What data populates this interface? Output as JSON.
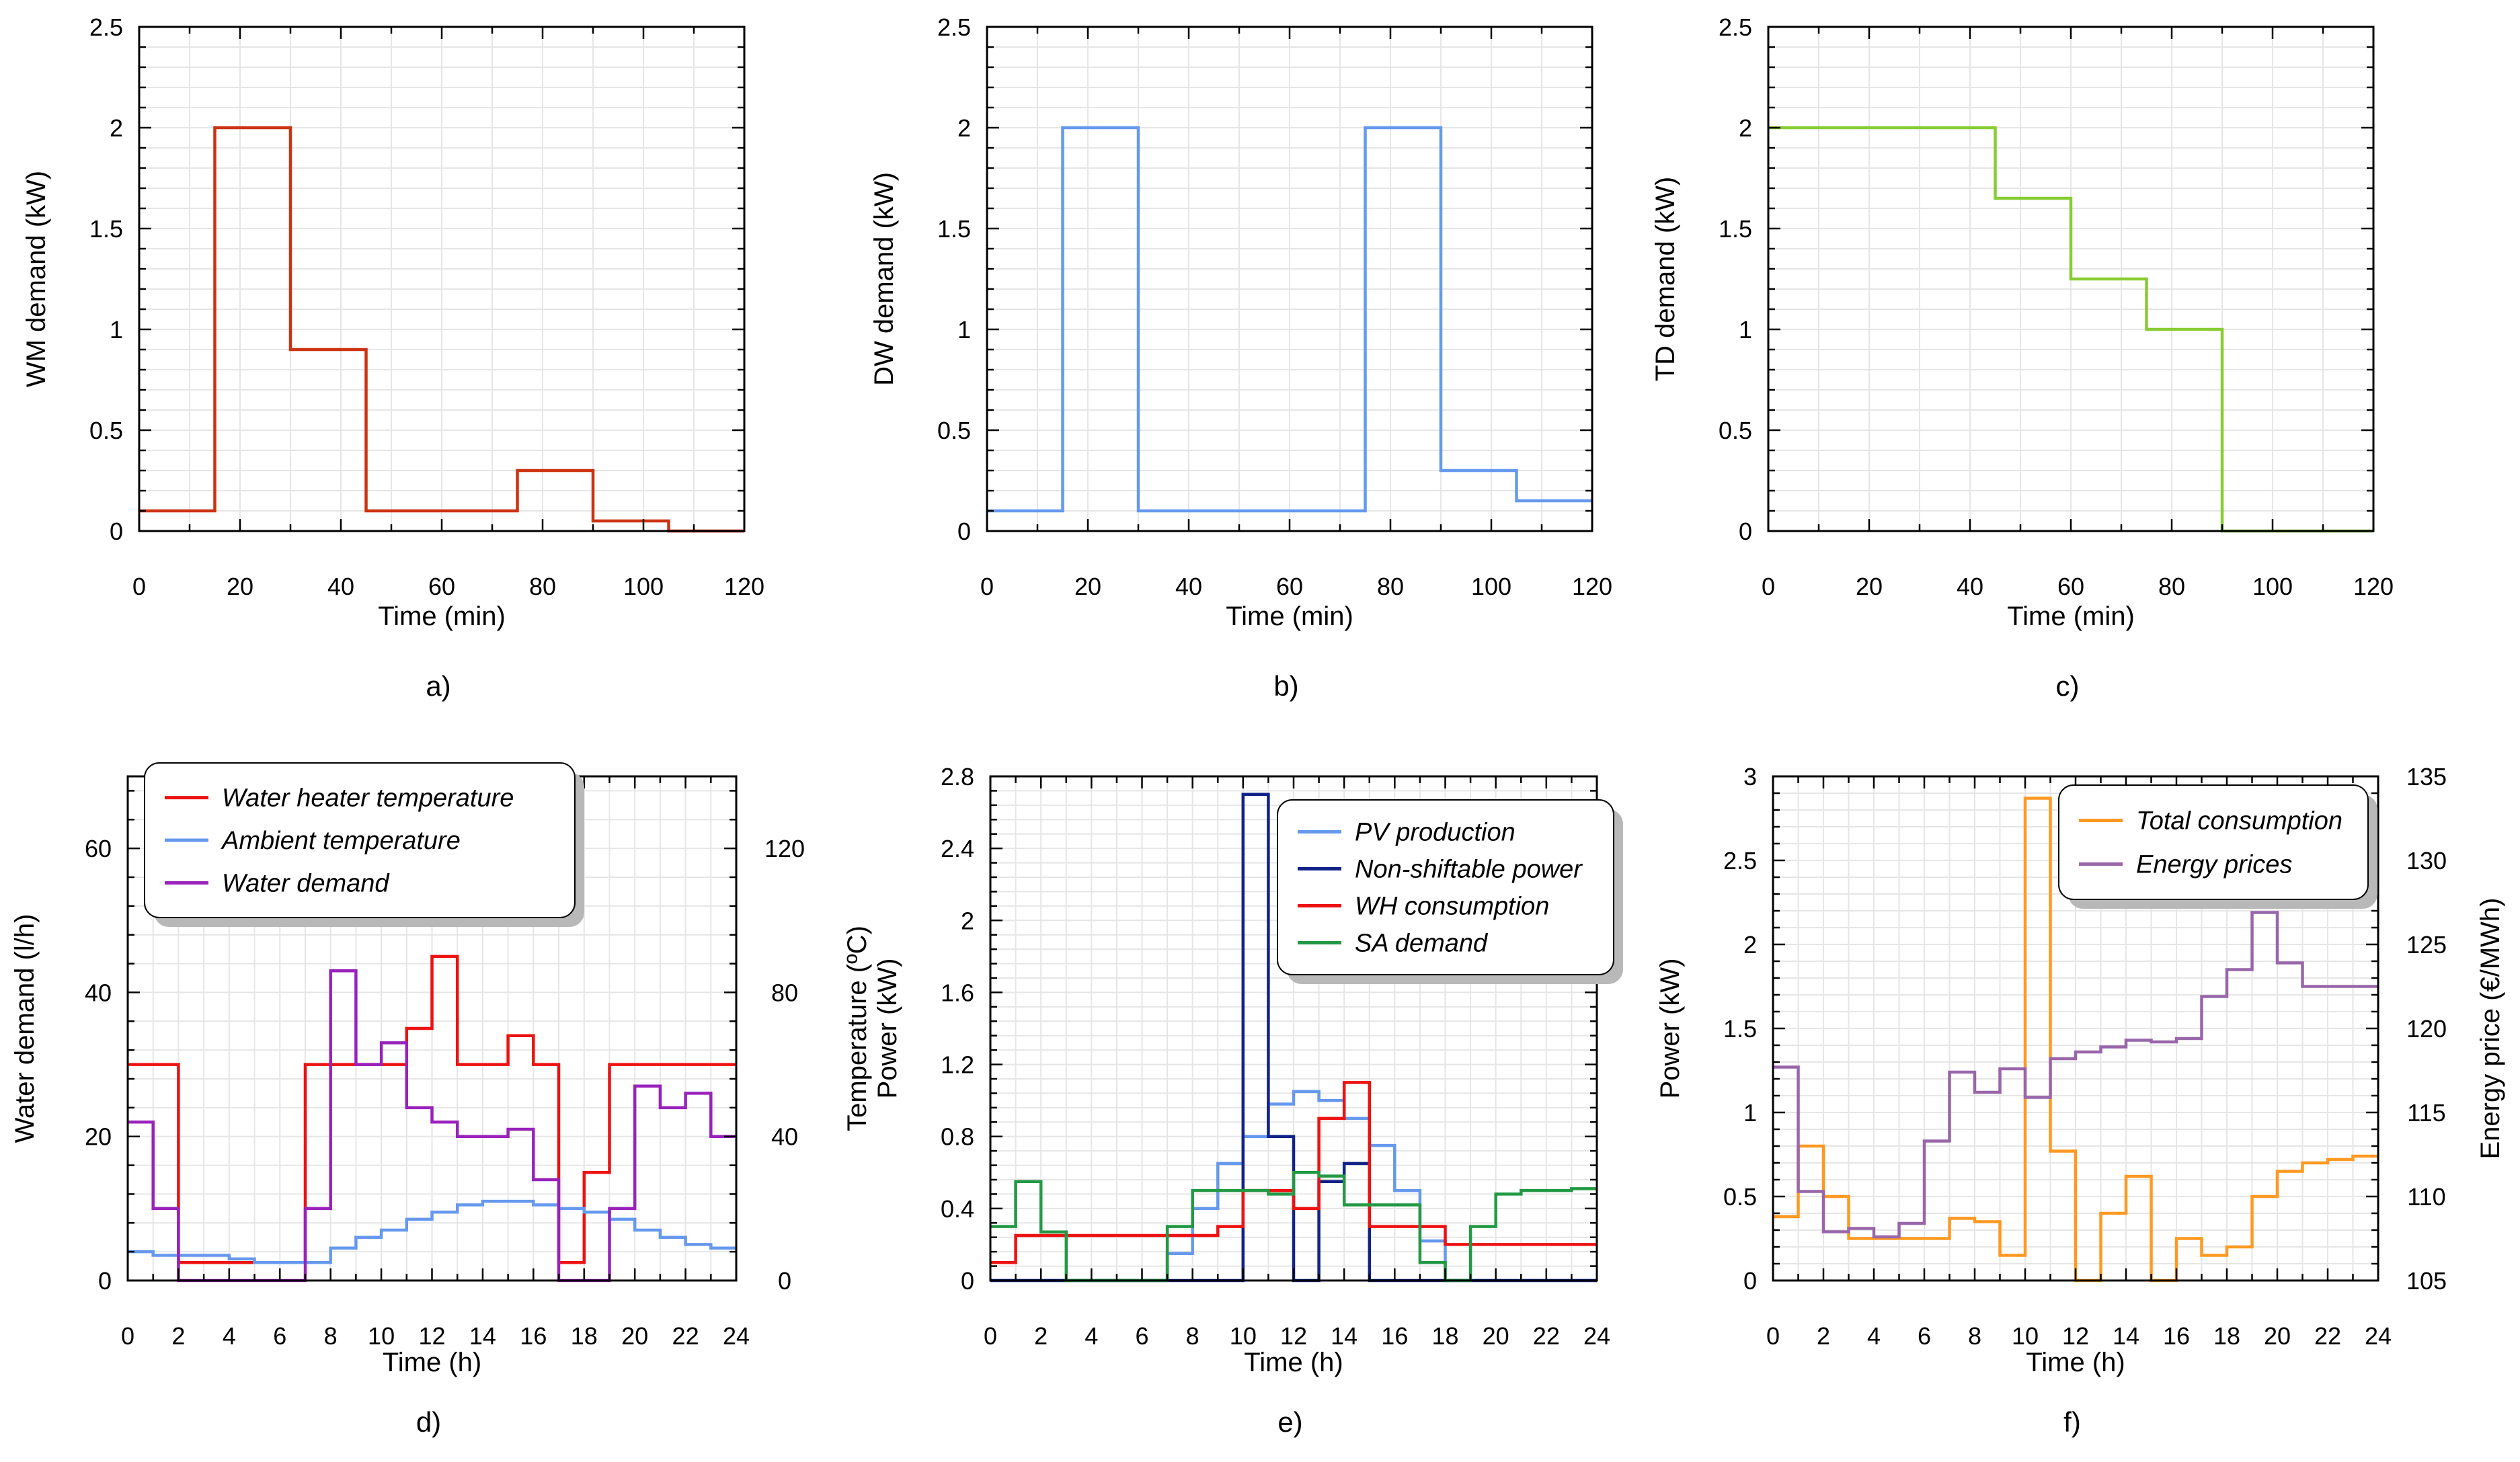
{
  "chart_data": [
    {
      "id": "a",
      "type": "line",
      "step": true,
      "caption": "a)",
      "xlabel": "Time (min)",
      "ylabel": "WM demand (kW)",
      "xlim": [
        0,
        120
      ],
      "ylim": [
        0,
        2.5
      ],
      "xticks": [
        0,
        20,
        40,
        60,
        80,
        100,
        120
      ],
      "yticks": [
        0,
        0.5,
        1,
        1.5,
        2,
        2.5
      ],
      "ytick_labels": [
        "0",
        "0.5",
        "1",
        "1.5",
        "2",
        "2.5"
      ],
      "grid": true,
      "series": [
        {
          "name": "WM demand",
          "color": "#cc3311",
          "edges": [
            0,
            15,
            30,
            45,
            60,
            75,
            90,
            105,
            120
          ],
          "values": [
            0.1,
            2.0,
            0.9,
            0.1,
            0.1,
            0.3,
            0.05,
            0
          ]
        }
      ]
    },
    {
      "id": "b",
      "type": "line",
      "step": true,
      "caption": "b)",
      "xlabel": "Time (min)",
      "ylabel": "DW demand (kW)",
      "xlim": [
        0,
        120
      ],
      "ylim": [
        0,
        2.5
      ],
      "xticks": [
        0,
        20,
        40,
        60,
        80,
        100,
        120
      ],
      "yticks": [
        0,
        0.5,
        1,
        1.5,
        2,
        2.5
      ],
      "ytick_labels": [
        "0",
        "0.5",
        "1",
        "1.5",
        "2",
        "2.5"
      ],
      "grid": true,
      "series": [
        {
          "name": "DW demand",
          "color": "#6699ee",
          "edges": [
            0,
            15,
            30,
            45,
            60,
            75,
            90,
            105,
            120
          ],
          "values": [
            0.1,
            2.0,
            0.1,
            0.1,
            0.1,
            2.0,
            0.3,
            0.15
          ]
        }
      ]
    },
    {
      "id": "c",
      "type": "line",
      "step": true,
      "caption": "c)",
      "xlabel": "Time (min)",
      "ylabel": "TD demand (kW)",
      "xlim": [
        0,
        120
      ],
      "ylim": [
        0,
        2.5
      ],
      "xticks": [
        0,
        20,
        40,
        60,
        80,
        100,
        120
      ],
      "yticks": [
        0,
        0.5,
        1,
        1.5,
        2,
        2.5
      ],
      "ytick_labels": [
        "0",
        "0.5",
        "1",
        "1.5",
        "2",
        "2.5"
      ],
      "grid": true,
      "series": [
        {
          "name": "TD demand",
          "color": "#88cc33",
          "edges": [
            0,
            15,
            30,
            45,
            60,
            75,
            90,
            105,
            120
          ],
          "values": [
            2.0,
            2.0,
            2.0,
            1.65,
            1.25,
            1.0,
            0,
            0
          ]
        }
      ]
    },
    {
      "id": "d",
      "type": "line",
      "step": true,
      "caption": "d)",
      "xlabel": "Time (h)",
      "ylabel": "Water demand (l/h)",
      "ylabel_right": "Temperature (ºC)",
      "xlim": [
        0,
        24
      ],
      "ylim": [
        0,
        70
      ],
      "ylim_right": [
        0,
        140
      ],
      "xticks": [
        0,
        2,
        4,
        6,
        8,
        10,
        12,
        14,
        16,
        18,
        20,
        22,
        24
      ],
      "yticks": [
        0,
        20,
        40,
        60
      ],
      "ytick_labels": [
        "0",
        "20",
        "40",
        "60"
      ],
      "yticks_right": [
        0,
        40,
        80,
        120
      ],
      "ytick_labels_right": [
        "0",
        "40",
        "80",
        "120"
      ],
      "grid": true,
      "legend_position": "top-left",
      "series": [
        {
          "name": "Water heater temperature",
          "axis": "right",
          "color": "#ee1111",
          "values": [
            60,
            60,
            5,
            5,
            5,
            5,
            5,
            60,
            60,
            60,
            60,
            70,
            90,
            60,
            60,
            68,
            60,
            5,
            30,
            60,
            60,
            60,
            60,
            60
          ]
        },
        {
          "name": "Ambient temperature",
          "axis": "right",
          "color": "#6699ee",
          "values": [
            8,
            7,
            7,
            7,
            6,
            5,
            5,
            5,
            9,
            12,
            14,
            17,
            19,
            21,
            22,
            22,
            21,
            20,
            19,
            17,
            14,
            12,
            10,
            9
          ]
        },
        {
          "name": "Water demand",
          "axis": "left",
          "color": "#9922bb",
          "values": [
            22,
            10,
            0,
            0,
            0,
            0,
            0,
            10,
            43,
            30,
            33,
            24,
            22,
            20,
            20,
            21,
            14,
            0,
            0,
            10,
            27,
            24,
            26,
            20
          ]
        }
      ]
    },
    {
      "id": "e",
      "type": "line",
      "step": true,
      "caption": "e)",
      "xlabel": "Time (h)",
      "ylabel": "Power (kW)",
      "xlim": [
        0,
        24
      ],
      "ylim": [
        0,
        2.8
      ],
      "xticks": [
        0,
        2,
        4,
        6,
        8,
        10,
        12,
        14,
        16,
        18,
        20,
        22,
        24
      ],
      "yticks": [
        0,
        0.4,
        0.8,
        1.2,
        1.6,
        2,
        2.4,
        2.8
      ],
      "ytick_labels": [
        "0",
        "0.4",
        "0.8",
        "1.2",
        "1.6",
        "2",
        "2.4",
        "2.8"
      ],
      "grid": true,
      "legend_position": "top-right",
      "series": [
        {
          "name": "PV production",
          "color": "#6699ee",
          "values": [
            0,
            0,
            0,
            0,
            0,
            0,
            0,
            0.15,
            0.4,
            0.65,
            0.8,
            0.98,
            1.05,
            1.0,
            0.9,
            0.75,
            0.5,
            0.22,
            0,
            0,
            0,
            0,
            0,
            0
          ]
        },
        {
          "name": "Non-shiftable power",
          "color": "#112288",
          "values": [
            0,
            0,
            0,
            0,
            0,
            0,
            0,
            0,
            0,
            0,
            2.7,
            0.8,
            0,
            0.55,
            0.65,
            0,
            0,
            0,
            0,
            0,
            0,
            0,
            0,
            0
          ]
        },
        {
          "name": "WH consumption",
          "color": "#ee1111",
          "values": [
            0.1,
            0.25,
            0.25,
            0.25,
            0.25,
            0.25,
            0.25,
            0.25,
            0.25,
            0.3,
            0.5,
            0.5,
            0.4,
            0.9,
            1.1,
            0.3,
            0.3,
            0.3,
            0.2,
            0.2,
            0.2,
            0.2,
            0.2,
            0.2
          ]
        },
        {
          "name": "SA demand",
          "color": "#229944",
          "values": [
            0.3,
            0.55,
            0.27,
            0,
            0,
            0,
            0,
            0.3,
            0.5,
            0.5,
            0.5,
            0.48,
            0.6,
            0.58,
            0.42,
            0.42,
            0.42,
            0.1,
            0,
            0.3,
            0.48,
            0.5,
            0.5,
            0.51
          ]
        }
      ]
    },
    {
      "id": "f",
      "type": "line",
      "step": true,
      "caption": "f)",
      "xlabel": "Time (h)",
      "ylabel": "Power (kW)",
      "ylabel_right": "Energy price (€/MWh)",
      "xlim": [
        0,
        24
      ],
      "ylim": [
        0,
        3
      ],
      "ylim_right": [
        105,
        135
      ],
      "xticks": [
        0,
        2,
        4,
        6,
        8,
        10,
        12,
        14,
        16,
        18,
        20,
        22,
        24
      ],
      "yticks": [
        0,
        0.5,
        1,
        1.5,
        2,
        2.5,
        3
      ],
      "ytick_labels": [
        "0",
        "0.5",
        "1",
        "1.5",
        "2",
        "2.5",
        "3"
      ],
      "yticks_right": [
        105,
        110,
        115,
        120,
        125,
        130,
        135
      ],
      "ytick_labels_right": [
        "105",
        "110",
        "115",
        "120",
        "125",
        "130",
        "135"
      ],
      "grid": true,
      "legend_position": "top-right",
      "series": [
        {
          "name": "Total consumption",
          "axis": "left",
          "color": "#ff9922",
          "values": [
            0.38,
            0.8,
            0.5,
            0.25,
            0.25,
            0.25,
            0.25,
            0.37,
            0.35,
            0.15,
            2.87,
            0.77,
            0,
            0.4,
            0.62,
            0,
            0.25,
            0.15,
            0.2,
            0.5,
            0.65,
            0.7,
            0.72,
            0.74
          ]
        },
        {
          "name": "Energy prices",
          "axis": "right",
          "color": "#9966aa",
          "values": [
            117.7,
            110.3,
            107.9,
            108.1,
            107.6,
            108.4,
            113.3,
            117.4,
            116.2,
            117.6,
            115.9,
            118.2,
            118.6,
            118.9,
            119.3,
            119.2,
            119.4,
            121.9,
            123.5,
            126.9,
            123.9,
            122.5,
            122.5,
            122.5
          ]
        }
      ]
    }
  ]
}
